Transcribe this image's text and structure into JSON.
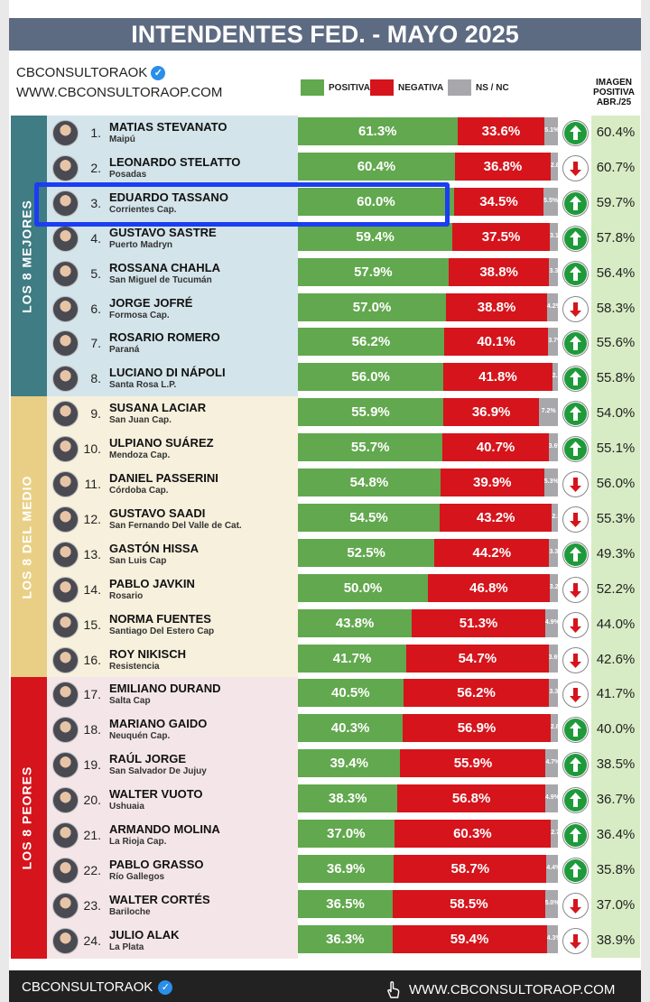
{
  "title": "INTENDENTES FED. - MAYO 2025",
  "brand": {
    "name": "CBCONSULTORAOK",
    "url": "WWW.CBCONSULTORAOP.COM",
    "verified_icon": "verified-badge-icon"
  },
  "legend": [
    {
      "label": "POSITIVA",
      "color": "#62a84e"
    },
    {
      "label": "NEGATIVA",
      "color": "#d5141c"
    },
    {
      "label": "NS / NC",
      "color": "#a8a8ac"
    }
  ],
  "image_header": [
    "IMAGEN",
    "POSITIVA",
    "ABR./25"
  ],
  "groups": [
    {
      "label": "LOS 8 MEJORES",
      "tab_color": "#3f7c84",
      "bg_color": "#d3e4ea"
    },
    {
      "label": "LOS 8 DEL MEDIO",
      "tab_color": "#e9cf86",
      "bg_color": "#f6f0dc"
    },
    {
      "label": "LOS 8 PEORES",
      "tab_color": "#d5141c",
      "bg_color": "#f4e6e8"
    }
  ],
  "footer": {
    "left": "CBCONSULTORAOK",
    "right": "WWW.CBCONSULTORAOP.COM",
    "icon": "hand-pointer-icon"
  },
  "chart_data": {
    "type": "bar",
    "stacked": true,
    "title": "INTENDENTES FED. - MAYO 2025",
    "series_names": [
      "POSITIVA",
      "NEGATIVA",
      "NS / NC"
    ],
    "rows": [
      {
        "rank": "1.",
        "name": "MATIAS STEVANATO",
        "city": "Maipú",
        "pos": 61.3,
        "pos_label": "61.3%",
        "neg": 33.6,
        "neg_label": "33.6%",
        "ns": 5.1,
        "ns_label": "5.1%",
        "trend": "up",
        "prev": "60.4%"
      },
      {
        "rank": "2.",
        "name": "LEONARDO STELATTO",
        "city": "Posadas",
        "pos": 60.4,
        "pos_label": "60.4%",
        "neg": 36.8,
        "neg_label": "36.8%",
        "ns": 2.8,
        "ns_label": "2.8%",
        "trend": "down",
        "prev": "60.7%"
      },
      {
        "rank": "3.",
        "name": "EDUARDO TASSANO",
        "city": "Corrientes Cap.",
        "pos": 60.0,
        "pos_label": "60.0%",
        "neg": 34.5,
        "neg_label": "34.5%",
        "ns": 5.5,
        "ns_label": "5.5%",
        "trend": "up",
        "prev": "59.7%"
      },
      {
        "rank": "4.",
        "name": "GUSTAVO SASTRE",
        "city": "Puerto Madryn",
        "pos": 59.4,
        "pos_label": "59.4%",
        "neg": 37.5,
        "neg_label": "37.5%",
        "ns": 3.1,
        "ns_label": "3.1%",
        "trend": "up",
        "prev": "57.8%"
      },
      {
        "rank": "5.",
        "name": "ROSSANA CHAHLA",
        "city": "San Miguel de Tucumán",
        "pos": 57.9,
        "pos_label": "57.9%",
        "neg": 38.8,
        "neg_label": "38.8%",
        "ns": 3.3,
        "ns_label": "3.3%",
        "trend": "up",
        "prev": "56.4%"
      },
      {
        "rank": "6.",
        "name": "JORGE JOFRÉ",
        "city": "Formosa Cap.",
        "pos": 57.0,
        "pos_label": "57.0%",
        "neg": 38.8,
        "neg_label": "38.8%",
        "ns": 4.2,
        "ns_label": "4.2%",
        "trend": "down",
        "prev": "58.3%"
      },
      {
        "rank": "7.",
        "name": "ROSARIO ROMERO",
        "city": "Paraná",
        "pos": 56.2,
        "pos_label": "56.2%",
        "neg": 40.1,
        "neg_label": "40.1%",
        "ns": 3.7,
        "ns_label": "3.7%",
        "trend": "up",
        "prev": "55.6%"
      },
      {
        "rank": "8.",
        "name": "LUCIANO DI NÁPOLI",
        "city": "Santa Rosa L.P.",
        "pos": 56.0,
        "pos_label": "56.0%",
        "neg": 41.8,
        "neg_label": "41.8%",
        "ns": 2.2,
        "ns_label": "2.2%",
        "trend": "up",
        "prev": "55.8%"
      },
      {
        "rank": "9.",
        "name": "SUSANA LACIAR",
        "city": "San Juan Cap.",
        "pos": 55.9,
        "pos_label": "55.9%",
        "neg": 36.9,
        "neg_label": "36.9%",
        "ns": 7.2,
        "ns_label": "7.2%",
        "trend": "up",
        "prev": "54.0%"
      },
      {
        "rank": "10.",
        "name": "ULPIANO SUÁREZ",
        "city": "Mendoza Cap.",
        "pos": 55.7,
        "pos_label": "55.7%",
        "neg": 40.7,
        "neg_label": "40.7%",
        "ns": 3.6,
        "ns_label": "3.6%",
        "trend": "up",
        "prev": "55.1%"
      },
      {
        "rank": "11.",
        "name": "DANIEL PASSERINI",
        "city": "Córdoba Cap.",
        "pos": 54.8,
        "pos_label": "54.8%",
        "neg": 39.9,
        "neg_label": "39.9%",
        "ns": 5.3,
        "ns_label": "5.3%",
        "trend": "down",
        "prev": "56.0%"
      },
      {
        "rank": "12.",
        "name": "GUSTAVO SAADI",
        "city": "San Fernando Del Valle de Cat.",
        "pos": 54.5,
        "pos_label": "54.5%",
        "neg": 43.2,
        "neg_label": "43.2%",
        "ns": 2.3,
        "ns_label": "2.3%",
        "trend": "down",
        "prev": "55.3%"
      },
      {
        "rank": "13.",
        "name": "GASTÓN HISSA",
        "city": "San Luis Cap",
        "pos": 52.5,
        "pos_label": "52.5%",
        "neg": 44.2,
        "neg_label": "44.2%",
        "ns": 3.3,
        "ns_label": "3.3%",
        "trend": "up",
        "prev": "49.3%"
      },
      {
        "rank": "14.",
        "name": "PABLO JAVKIN",
        "city": "Rosario",
        "pos": 50.0,
        "pos_label": "50.0%",
        "neg": 46.8,
        "neg_label": "46.8%",
        "ns": 3.2,
        "ns_label": "3.2%",
        "trend": "down",
        "prev": "52.2%"
      },
      {
        "rank": "15.",
        "name": "NORMA FUENTES",
        "city": "Santiago Del Estero Cap",
        "pos": 43.8,
        "pos_label": "43.8%",
        "neg": 51.3,
        "neg_label": "51.3%",
        "ns": 4.9,
        "ns_label": "4.9%",
        "trend": "down",
        "prev": "44.0%"
      },
      {
        "rank": "16.",
        "name": "ROY NIKISCH",
        "city": "Resistencia",
        "pos": 41.7,
        "pos_label": "41.7%",
        "neg": 54.7,
        "neg_label": "54.7%",
        "ns": 3.6,
        "ns_label": "3.6%",
        "trend": "down",
        "prev": "42.6%"
      },
      {
        "rank": "17.",
        "name": "EMILIANO DURAND",
        "city": "Salta Cap",
        "pos": 40.5,
        "pos_label": "40.5%",
        "neg": 56.2,
        "neg_label": "56.2%",
        "ns": 3.3,
        "ns_label": "3.3%",
        "trend": "down",
        "prev": "41.7%"
      },
      {
        "rank": "18.",
        "name": "MARIANO GAIDO",
        "city": "Neuquén Cap.",
        "pos": 40.3,
        "pos_label": "40.3%",
        "neg": 56.9,
        "neg_label": "56.9%",
        "ns": 2.8,
        "ns_label": "2.8%",
        "trend": "up",
        "prev": "40.0%"
      },
      {
        "rank": "19.",
        "name": "RAÚL JORGE",
        "city": "San Salvador De Jujuy",
        "pos": 39.4,
        "pos_label": "39.4%",
        "neg": 55.9,
        "neg_label": "55.9%",
        "ns": 4.7,
        "ns_label": "4.7%",
        "trend": "up",
        "prev": "38.5%"
      },
      {
        "rank": "20.",
        "name": "WALTER VUOTO",
        "city": "Ushuaia",
        "pos": 38.3,
        "pos_label": "38.3%",
        "neg": 56.8,
        "neg_label": "56.8%",
        "ns": 4.9,
        "ns_label": "4.9%",
        "trend": "up",
        "prev": "36.7%"
      },
      {
        "rank": "21.",
        "name": "ARMANDO MOLINA",
        "city": "La Rioja Cap.",
        "pos": 37.0,
        "pos_label": "37.0%",
        "neg": 60.3,
        "neg_label": "60.3%",
        "ns": 2.7,
        "ns_label": "2.7%",
        "trend": "up",
        "prev": "36.4%"
      },
      {
        "rank": "22.",
        "name": "PABLO GRASSO",
        "city": "Río Gallegos",
        "pos": 36.9,
        "pos_label": "36.9%",
        "neg": 58.7,
        "neg_label": "58.7%",
        "ns": 4.4,
        "ns_label": "4.4%",
        "trend": "up",
        "prev": "35.8%"
      },
      {
        "rank": "23.",
        "name": "WALTER CORTÉS",
        "city": "Bariloche",
        "pos": 36.5,
        "pos_label": "36.5%",
        "neg": 58.5,
        "neg_label": "58.5%",
        "ns": 5.0,
        "ns_label": "5.0%",
        "trend": "down",
        "prev": "37.0%"
      },
      {
        "rank": "24.",
        "name": "JULIO ALAK",
        "city": "La Plata",
        "pos": 36.3,
        "pos_label": "36.3%",
        "neg": 59.4,
        "neg_label": "59.4%",
        "ns": 4.3,
        "ns_label": "4.3%",
        "trend": "down",
        "prev": "38.9%"
      }
    ]
  }
}
